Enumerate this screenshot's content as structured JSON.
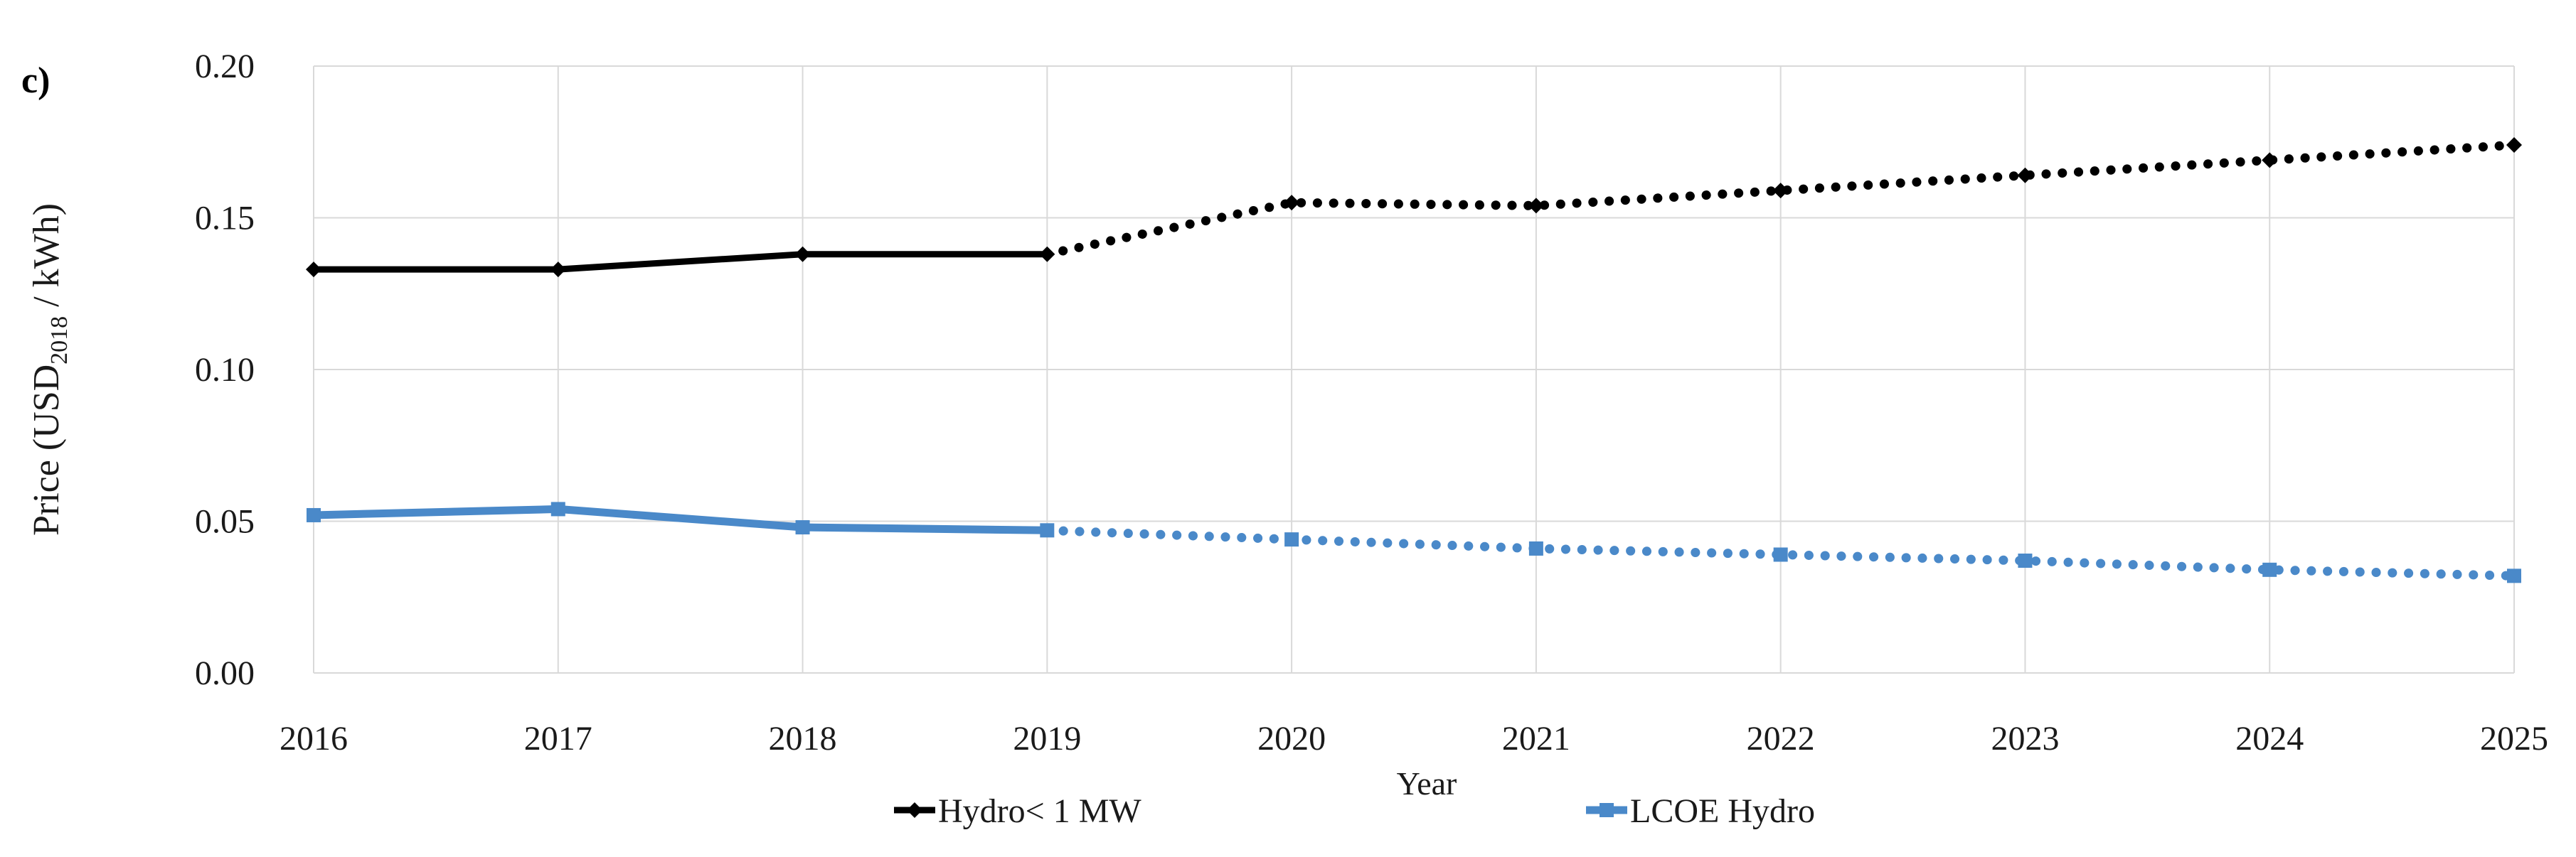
{
  "panel_label": "c)",
  "chart_data": {
    "type": "line",
    "title": "",
    "xlabel": "Year",
    "ylabel": "Price (USD2018 / kWh)",
    "ylabel_parts": {
      "prefix": "Price (USD",
      "subscript": "2018",
      "suffix": " / kWh)"
    },
    "x": [
      2016,
      2017,
      2018,
      2019,
      2020,
      2021,
      2022,
      2023,
      2024,
      2025
    ],
    "x_tick_labels": [
      "2016",
      "2017",
      "2018",
      "2019",
      "2020",
      "2021",
      "2022",
      "2023",
      "2024",
      "2025"
    ],
    "y_ticks": [
      {
        "label": "0.20",
        "value": 0.2
      },
      {
        "label": "0.15",
        "value": 0.15
      },
      {
        "label": "0.10",
        "value": 0.1
      },
      {
        "label": "0.05",
        "value": 0.05
      },
      {
        "label": "0.00",
        "value": 0.0
      }
    ],
    "ylim": [
      0.0,
      0.2
    ],
    "grid": "both",
    "legend_position": "bottom",
    "series": [
      {
        "name": "Hydro< 1 MW",
        "color": "#000000",
        "marker": "diamond",
        "line_style": "solid-then-dotted",
        "solid_until_x": 2019,
        "values": [
          0.133,
          0.133,
          0.138,
          0.138,
          0.155,
          0.154,
          0.159,
          0.164,
          0.169,
          0.174
        ]
      },
      {
        "name": "LCOE Hydro",
        "color": "#4A89C9",
        "marker": "square",
        "line_style": "solid-then-dotted",
        "solid_until_x": 2019,
        "values": [
          0.052,
          0.054,
          0.048,
          0.047,
          0.044,
          0.041,
          0.039,
          0.037,
          0.034,
          0.032
        ]
      }
    ],
    "colors": {
      "gridline": "#D9D9D9",
      "tick_text": "#1a1a1a",
      "axis_title_text": "#1a1a1a"
    }
  }
}
